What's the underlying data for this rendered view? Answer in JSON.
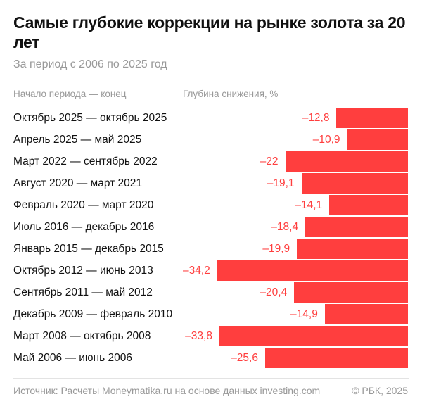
{
  "title": "Самые глубокие коррекции на рынке золота за 20 лет",
  "subtitle": "За период с 2006 по 2025 год",
  "footer": {
    "source": "Источник: Расчеты Moneymatika.ru на основе данных investing.com",
    "copyright": "© РБК, 2025"
  },
  "colors": {
    "bar": "#ff3e3e"
  },
  "chart_data": {
    "type": "bar",
    "orientation": "horizontal",
    "title": "Самые глубокие коррекции на рынке золота за 20 лет",
    "subtitle": "За период с 2006 по 2025 год",
    "category_header": "Начало периода — конец",
    "value_header": "Глубина снижения, %",
    "categories": [
      "Октябрь 2025 — октябрь 2025",
      "Апрель 2025 — май 2025",
      "Март 2022 — сентябрь 2022",
      "Август 2020 — март 2021",
      "Февраль 2020 — март 2020",
      "Июль 2016 — декабрь 2016",
      "Январь 2015 — декабрь 2015",
      "Октябрь 2012 — июнь 2013",
      "Сентябрь 2011 — май 2012",
      "Декабрь 2009 — февраль 2010",
      "Март 2008 — октябрь 2008",
      "Май 2006 — июнь 2006"
    ],
    "values": [
      -12.8,
      -10.9,
      -22,
      -19.1,
      -14.1,
      -18.4,
      -19.9,
      -34.2,
      -20.4,
      -14.9,
      -33.8,
      -25.6
    ],
    "value_labels": [
      "–12,8",
      "–10,9",
      "–22",
      "–19,1",
      "–14,1",
      "–18,4",
      "–19,9",
      "–34,2",
      "–20,4",
      "–14,9",
      "–33,8",
      "–25,6"
    ],
    "grid": false,
    "legend": "none"
  }
}
